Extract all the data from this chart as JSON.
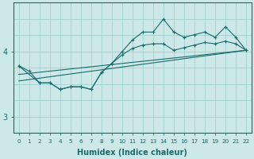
{
  "xlabel": "Humidex (Indice chaleur)",
  "bg_color": "#cce8e8",
  "grid_color": "#99cccc",
  "line_color": "#1a6b6b",
  "xlim": [
    -0.5,
    22.5
  ],
  "ylim": [
    2.75,
    4.75
  ],
  "yticks": [
    3,
    4
  ],
  "xticks": [
    0,
    1,
    2,
    3,
    4,
    5,
    6,
    7,
    8,
    9,
    10,
    11,
    12,
    13,
    14,
    15,
    16,
    17,
    18,
    19,
    20,
    21,
    22
  ],
  "series": {
    "main": {
      "x": [
        0,
        1,
        2,
        3,
        4,
        5,
        6,
        7,
        8,
        9,
        10,
        11,
        12,
        13,
        14,
        15,
        16,
        17,
        18,
        19,
        20,
        21,
        22
      ],
      "y": [
        3.78,
        3.7,
        3.52,
        3.52,
        3.42,
        3.46,
        3.46,
        3.42,
        3.68,
        3.82,
        4.0,
        4.18,
        4.3,
        4.3,
        4.5,
        4.3,
        4.22,
        4.26,
        4.3,
        4.22,
        4.38,
        4.22,
        4.02
      ]
    },
    "lower": {
      "x": [
        0,
        2,
        3,
        4,
        5,
        6,
        7,
        8,
        9,
        10,
        11,
        12,
        13,
        14,
        15,
        16,
        17,
        18,
        19,
        20,
        21,
        22
      ],
      "y": [
        3.78,
        3.52,
        3.52,
        3.42,
        3.46,
        3.46,
        3.42,
        3.68,
        3.82,
        3.95,
        4.05,
        4.1,
        4.12,
        4.12,
        4.02,
        4.06,
        4.1,
        4.14,
        4.12,
        4.16,
        4.12,
        4.02
      ]
    },
    "trend1": {
      "x": [
        0,
        22
      ],
      "y": [
        3.65,
        4.02
      ]
    },
    "trend2": {
      "x": [
        0,
        22
      ],
      "y": [
        3.55,
        4.02
      ]
    }
  },
  "grid_x_minor": [
    0,
    1,
    2,
    3,
    4,
    5,
    6,
    7,
    8,
    9,
    10,
    11,
    12,
    13,
    14,
    15,
    16,
    17,
    18,
    19,
    20,
    21,
    22
  ],
  "grid_y_minor": [
    2.75,
    3.0,
    3.25,
    3.5,
    3.75,
    4.0,
    4.25,
    4.5,
    4.75
  ]
}
